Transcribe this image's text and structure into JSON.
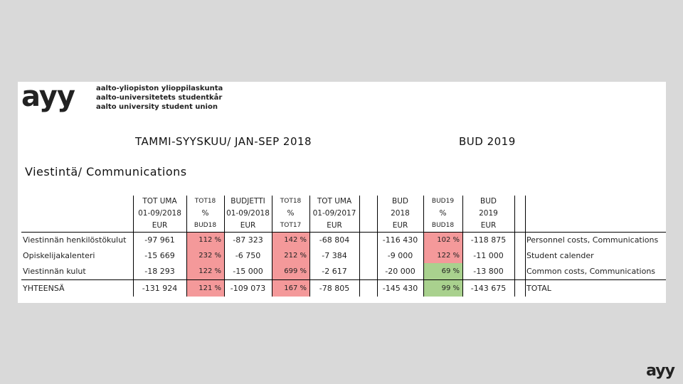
{
  "logo": "ayy",
  "organization": [
    "aalto-yliopiston ylioppilaskunta",
    "aalto-universitetets studentkår",
    "aalto university student union"
  ],
  "heading": "TAMMI-SYYSKUU/ JAN-SEP 2018",
  "budget_heading": "BUD 2019",
  "section": "Viestintä/ Communications",
  "table": {
    "columns": [
      [
        "TOT UMA",
        "01-09/2018",
        "EUR"
      ],
      [
        "TOT18",
        "%",
        "BUD18"
      ],
      [
        "BUDJETTI",
        "01-09/2018",
        "EUR"
      ],
      [
        "TOT18",
        "%",
        "TOT17"
      ],
      [
        "TOT UMA",
        "01-09/2017",
        "EUR"
      ],
      [
        "BUD",
        "2018",
        "EUR"
      ],
      [
        "BUD19",
        "%",
        "BUD18"
      ],
      [
        "BUD",
        "2019",
        "EUR"
      ]
    ],
    "rows": [
      [
        "Viestinnän henkilöstökulut",
        "-97 961",
        "112 %",
        "-87 323",
        "142 %",
        "-68 804",
        "-116 430",
        "102 %",
        "-118 875",
        "Personnel costs, Communications"
      ],
      [
        "Opiskelijakalenteri",
        "-15 669",
        "232 %",
        "-6 750",
        "212 %",
        "-7 384",
        "-9 000",
        "122 %",
        "-11 000",
        "Student calender"
      ],
      [
        "Viestinnän kulut",
        "-18 293",
        "122 %",
        "-15 000",
        "699 %",
        "-2 617",
        "-20 000",
        "69 %",
        "-13 800",
        "Common costs, Communications"
      ],
      [
        "YHTEENSÄ",
        "-131 924",
        "121 %",
        "-109 073",
        "167 %",
        "-78 805",
        "-145 430",
        "99 %",
        "-143 675",
        "TOTAL"
      ]
    ]
  },
  "footer_logo": "ayy"
}
